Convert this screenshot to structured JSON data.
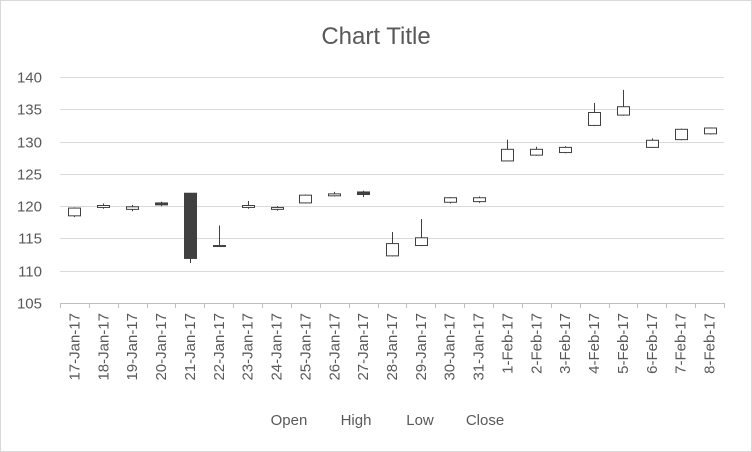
{
  "chart_data": {
    "type": "candlestick",
    "title": "Chart Title",
    "xlabel": "",
    "ylabel": "",
    "ylim": [
      105,
      140
    ],
    "yticks": [
      105,
      110,
      115,
      120,
      125,
      130,
      135,
      140
    ],
    "grid": true,
    "legend_position": "bottom",
    "legend": [
      "Open",
      "High",
      "Low",
      "Close"
    ],
    "colors": {
      "up_fill": "#ffffff",
      "down_fill": "#404040",
      "stroke": "#404040",
      "grid": "#d9d9d9",
      "axis": "#bfbfbf",
      "text": "#595959"
    },
    "categories": [
      "17-Jan-17",
      "18-Jan-17",
      "19-Jan-17",
      "20-Jan-17",
      "21-Jan-17",
      "22-Jan-17",
      "23-Jan-17",
      "24-Jan-17",
      "25-Jan-17",
      "26-Jan-17",
      "27-Jan-17",
      "28-Jan-17",
      "29-Jan-17",
      "30-Jan-17",
      "31-Jan-17",
      "1-Feb-17",
      "2-Feb-17",
      "3-Feb-17",
      "4-Feb-17",
      "5-Feb-17",
      "6-Feb-17",
      "7-Feb-17",
      "8-Feb-17"
    ],
    "series": [
      {
        "name": "Open",
        "values": [
          118.5,
          119.8,
          119.5,
          120.5,
          122.0,
          113.9,
          119.8,
          119.5,
          120.5,
          121.6,
          122.2,
          112.3,
          113.9,
          120.6,
          120.7,
          127.0,
          127.9,
          128.3,
          132.5,
          134.1,
          129.1,
          130.3,
          131.2
        ]
      },
      {
        "name": "High",
        "values": [
          119.8,
          120.4,
          120.2,
          120.7,
          122.0,
          117.0,
          120.8,
          120.0,
          121.8,
          122.2,
          122.4,
          116.0,
          118.0,
          121.4,
          121.5,
          130.3,
          129.2,
          129.3,
          136.0,
          138.0,
          130.5,
          132.0,
          132.2
        ]
      },
      {
        "name": "Low",
        "values": [
          118.3,
          119.6,
          119.2,
          120.0,
          111.2,
          113.8,
          119.6,
          119.3,
          120.4,
          121.5,
          121.4,
          112.2,
          113.8,
          120.4,
          120.5,
          127.0,
          127.8,
          128.2,
          132.4,
          134.0,
          129.0,
          130.2,
          131.1
        ]
      },
      {
        "name": "Close",
        "values": [
          119.7,
          120.1,
          119.9,
          120.2,
          111.9,
          113.9,
          120.1,
          119.8,
          121.7,
          121.9,
          121.8,
          114.2,
          115.1,
          121.3,
          121.3,
          128.8,
          128.8,
          129.1,
          134.5,
          135.4,
          130.2,
          131.9,
          132.1
        ]
      }
    ]
  }
}
